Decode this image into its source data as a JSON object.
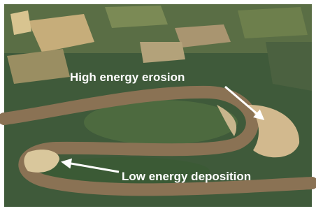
{
  "annotations": [
    {
      "label": "High energy erosion"
    },
    {
      "label": "Low energy deposition"
    }
  ]
}
